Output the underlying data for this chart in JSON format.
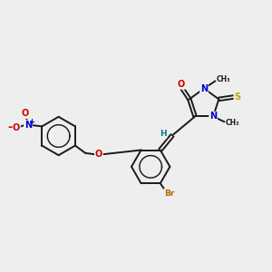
{
  "background_color": "#eeeeee",
  "bond_color": "#1a1a1a",
  "atom_colors": {
    "N": "#0000cc",
    "O": "#cc0000",
    "S": "#bbaa00",
    "Br": "#bb6600",
    "H": "#007799",
    "C": "#1a1a1a"
  },
  "figsize": [
    3.0,
    3.0
  ],
  "dpi": 100,
  "lw": 1.4
}
